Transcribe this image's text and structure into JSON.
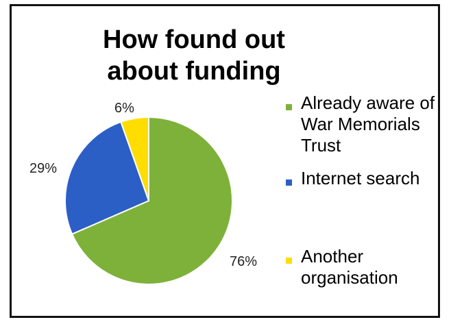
{
  "chart_data": {
    "type": "pie",
    "title": "How found out about funding",
    "series": [
      {
        "name": "",
        "values": [
          76,
          29,
          6
        ]
      }
    ],
    "categories": [
      "Already aware of War Memorials Trust",
      "Internet search",
      "Another organisation"
    ],
    "data_labels": [
      "76%",
      "29%",
      "6%"
    ],
    "colors": [
      "#7EB13A",
      "#2C5FC5",
      "#FFDD00"
    ],
    "legend_position": "right"
  }
}
